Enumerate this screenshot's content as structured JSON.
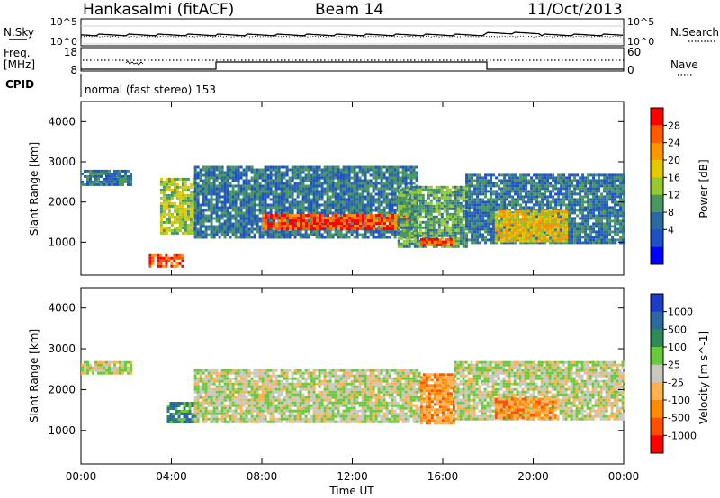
{
  "header": {
    "station": "Hankasalmi (fitACF)",
    "beam": "Beam 14",
    "date": "11/Oct/2013"
  },
  "noise_panel": {
    "left_label": "N.Sky",
    "right_label": "N.Search",
    "left_ticks": [
      "10^5",
      "10^0"
    ],
    "right_ticks": [
      "10^5",
      "10^0"
    ]
  },
  "freq_panel": {
    "left_label_line1": "Freq.",
    "left_label_line2": "[MHz]",
    "left_ticks": [
      "18",
      "8"
    ],
    "right_label": "Nave",
    "right_ticks": [
      "60",
      "0"
    ]
  },
  "cpid": {
    "label": "CPID",
    "text": "normal (fast stereo) 153"
  },
  "chart_data": [
    {
      "type": "heatmap",
      "name": "power",
      "ylabel": "Slant Range [km]",
      "yticks": [
        "4000",
        "3000",
        "2000",
        "1000"
      ],
      "ylim": [
        180,
        4500
      ],
      "xlim_hours": [
        0,
        24
      ],
      "colorbar_label": "Power [dB]",
      "colorbar_ticks": [
        "28",
        "24",
        "20",
        "16",
        "12",
        "8",
        "4"
      ],
      "colorbar_colors": [
        "#ff0000",
        "#ff5a00",
        "#ff9600",
        "#e6c800",
        "#96c832",
        "#4a9660",
        "#2a6aa0",
        "#1e50c8",
        "#0000ff"
      ],
      "regions": [
        {
          "t0": 0.0,
          "t1": 2.2,
          "r0": 2400,
          "r1": 2800,
          "level": 2
        },
        {
          "t0": 3.5,
          "t1": 5.0,
          "r0": 1200,
          "r1": 2600,
          "level": 4
        },
        {
          "t0": 3.0,
          "t1": 4.5,
          "r0": 400,
          "r1": 700,
          "level": 7
        },
        {
          "t0": 5.0,
          "t1": 14.8,
          "r0": 1100,
          "r1": 2900,
          "level": 2
        },
        {
          "t0": 8.0,
          "t1": 14.5,
          "r0": 1300,
          "r1": 1700,
          "level": 7
        },
        {
          "t0": 14.0,
          "t1": 17.0,
          "r0": 900,
          "r1": 2400,
          "level": 3
        },
        {
          "t0": 15.0,
          "t1": 16.5,
          "r0": 900,
          "r1": 1100,
          "level": 7
        },
        {
          "t0": 17.0,
          "t1": 24.0,
          "r0": 1000,
          "r1": 2700,
          "level": 2
        },
        {
          "t0": 18.3,
          "t1": 21.5,
          "r0": 1000,
          "r1": 1800,
          "level": 5
        }
      ]
    },
    {
      "type": "heatmap",
      "name": "velocity",
      "ylabel": "Slant Range [km]",
      "yticks": [
        "4000",
        "3000",
        "2000",
        "1000"
      ],
      "ylim": [
        180,
        4500
      ],
      "xlim_hours": [
        0,
        24
      ],
      "xticks": [
        "00:00",
        "04:00",
        "08:00",
        "12:00",
        "16:00",
        "20:00",
        "00:00"
      ],
      "xlabel": "Time UT",
      "colorbar_label": "Velocity [m s^-1]",
      "colorbar_ticks": [
        "1000",
        "500",
        "100",
        "25",
        "-25",
        "-100",
        "-500",
        "-1000"
      ],
      "colorbar_colors": [
        "#1e3cc8",
        "#2a6aa0",
        "#2e8a58",
        "#6ac83c",
        "#c8c8c0",
        "#ffb050",
        "#ff8c00",
        "#ff5000",
        "#ff0000"
      ],
      "regions": [
        {
          "t0": 0.0,
          "t1": 2.2,
          "r0": 2400,
          "r1": 2700,
          "level": 4
        },
        {
          "t0": 3.8,
          "t1": 5.0,
          "r0": 1200,
          "r1": 1700,
          "level": 6
        },
        {
          "t0": 5.0,
          "t1": 15.0,
          "r0": 1200,
          "r1": 2500,
          "level": 4
        },
        {
          "t0": 15.0,
          "t1": 16.5,
          "r0": 1200,
          "r1": 2400,
          "level": 2
        },
        {
          "t0": 16.5,
          "t1": 24.0,
          "r0": 1300,
          "r1": 2700,
          "level": 4
        },
        {
          "t0": 18.3,
          "t1": 21.0,
          "r0": 1300,
          "r1": 1800,
          "level": 2
        }
      ]
    }
  ]
}
